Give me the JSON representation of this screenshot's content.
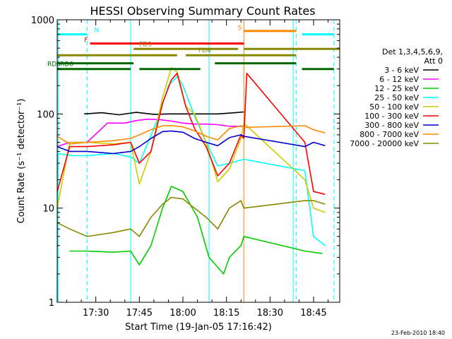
{
  "chart_data": {
    "type": "line",
    "title": "HESSI Observing Summary Count Rates",
    "xlabel": "Start Time (19-Jan-05 17:16:42)",
    "ylabel": "Count Rate (s⁻¹ detector⁻¹)",
    "ylim": [
      1,
      1000
    ],
    "yscale": "log",
    "xlim": [
      "17:16:42",
      "18:54:00"
    ],
    "y_ticks": [
      "1",
      "10",
      "100",
      "1000"
    ],
    "x_ticks": [
      "17:30",
      "17:45",
      "18:00",
      "18:15",
      "18:30",
      "18:45"
    ],
    "grid": false,
    "legend": {
      "title_lines": [
        "Det 1,3,4,5,6,9,",
        "Att 0"
      ],
      "placement": "right"
    },
    "series": [
      {
        "name": "3 - 6 keV",
        "color": "#000000",
        "points": [
          [
            "17:26",
            100
          ],
          [
            "17:32",
            103
          ],
          [
            "17:38",
            98
          ],
          [
            "17:44",
            104
          ],
          [
            "17:50",
            99
          ],
          [
            "17:55",
            100
          ],
          [
            "18:02",
            100
          ],
          [
            "18:08",
            100
          ],
          [
            "18:12",
            100
          ],
          [
            "18:18",
            103
          ],
          [
            "18:21",
            105
          ]
        ]
      },
      {
        "name": "6 - 12 keV",
        "color": "#ff00ff",
        "points": [
          [
            "17:16:42",
            45
          ],
          [
            "17:21",
            50
          ],
          [
            "17:27",
            50
          ],
          [
            "17:34",
            80
          ],
          [
            "17:40",
            80
          ],
          [
            "17:44",
            85
          ],
          [
            "17:48",
            88
          ],
          [
            "17:52",
            87
          ],
          [
            "17:56",
            84
          ],
          [
            "18:00",
            80
          ],
          [
            "18:04",
            78
          ],
          [
            "18:08",
            78
          ],
          [
            "18:12",
            77
          ],
          [
            "18:16",
            74
          ],
          [
            "18:20",
            74
          ],
          [
            "18:21",
            74
          ]
        ]
      },
      {
        "name": "12 - 25 keV",
        "color": "#00cc00",
        "points": [
          [
            "17:21",
            3.5
          ],
          [
            "17:27",
            3.5
          ],
          [
            "17:36",
            3.4
          ],
          [
            "17:42",
            3.5
          ],
          [
            "17:45",
            2.5
          ],
          [
            "17:49",
            4
          ],
          [
            "17:53",
            10
          ],
          [
            "17:56",
            17
          ],
          [
            "18:00",
            15
          ],
          [
            "18:05",
            8
          ],
          [
            "18:09",
            3
          ],
          [
            "18:14",
            2
          ],
          [
            "18:16",
            3
          ],
          [
            "18:20",
            4
          ],
          [
            "18:21",
            5
          ],
          [
            "18:42",
            3.5
          ],
          [
            "18:48",
            3.3
          ]
        ]
      },
      {
        "name": "25 - 50 keV",
        "color": "#00ffff",
        "points": [
          [
            "17:16:42",
            1
          ],
          [
            "17:17",
            38
          ],
          [
            "17:22",
            36
          ],
          [
            "17:27",
            36
          ],
          [
            "17:36",
            38
          ],
          [
            "17:42",
            35
          ],
          [
            "17:45",
            30
          ],
          [
            "17:48",
            50
          ],
          [
            "17:52",
            100
          ],
          [
            "17:55",
            200
          ],
          [
            "17:58",
            250
          ],
          [
            "18:00",
            200
          ],
          [
            "18:04",
            95
          ],
          [
            "18:08",
            50
          ],
          [
            "18:12",
            28
          ],
          [
            "18:16",
            30
          ],
          [
            "18:21",
            33
          ],
          [
            "18:42",
            25
          ],
          [
            "18:45",
            5
          ],
          [
            "18:49",
            4
          ]
        ]
      },
      {
        "name": "50 - 100 keV",
        "color": "#cccc00",
        "points": [
          [
            "17:16:42",
            10
          ],
          [
            "17:21",
            50
          ],
          [
            "17:27",
            50
          ],
          [
            "17:36",
            48
          ],
          [
            "17:42",
            50
          ],
          [
            "17:45",
            18
          ],
          [
            "17:49",
            40
          ],
          [
            "17:53",
            150
          ],
          [
            "17:56",
            310
          ],
          [
            "17:58",
            280
          ],
          [
            "18:01",
            120
          ],
          [
            "18:04",
            100
          ],
          [
            "18:08",
            50
          ],
          [
            "18:12",
            19
          ],
          [
            "18:16",
            26
          ],
          [
            "18:20",
            55
          ],
          [
            "18:21",
            80
          ],
          [
            "18:42",
            20
          ],
          [
            "18:45",
            10
          ],
          [
            "18:49",
            9
          ]
        ]
      },
      {
        "name": "100 - 300 keV",
        "color": "#ff0000",
        "points": [
          [
            "17:16:42",
            15
          ],
          [
            "17:21",
            45
          ],
          [
            "17:27",
            45
          ],
          [
            "17:36",
            47
          ],
          [
            "17:42",
            50
          ],
          [
            "17:45",
            30
          ],
          [
            "17:49",
            40
          ],
          [
            "17:53",
            130
          ],
          [
            "17:56",
            230
          ],
          [
            "17:58",
            270
          ],
          [
            "18:01",
            120
          ],
          [
            "18:04",
            70
          ],
          [
            "18:08",
            45
          ],
          [
            "18:12",
            22
          ],
          [
            "18:16",
            30
          ],
          [
            "18:20",
            60
          ],
          [
            "18:21",
            55
          ],
          [
            "18:22",
            270
          ],
          [
            "18:42",
            50
          ],
          [
            "18:45",
            15
          ],
          [
            "18:49",
            14
          ]
        ]
      },
      {
        "name": "300 - 800 keV",
        "color": "#0000cc",
        "points": [
          [
            "17:16:42",
            45
          ],
          [
            "17:21",
            40
          ],
          [
            "17:27",
            40
          ],
          [
            "17:36",
            38
          ],
          [
            "17:42",
            40
          ],
          [
            "17:45",
            45
          ],
          [
            "17:49",
            55
          ],
          [
            "17:53",
            65
          ],
          [
            "17:56",
            66
          ],
          [
            "18:00",
            64
          ],
          [
            "18:04",
            55
          ],
          [
            "18:08",
            50
          ],
          [
            "18:12",
            46
          ],
          [
            "18:16",
            56
          ],
          [
            "18:20",
            60
          ],
          [
            "18:21",
            58
          ],
          [
            "18:42",
            45
          ],
          [
            "18:45",
            50
          ],
          [
            "18:49",
            46
          ]
        ]
      },
      {
        "name": "800 - 7000 keV",
        "color": "#ff8800",
        "points": [
          [
            "17:16:42",
            58
          ],
          [
            "17:21",
            48
          ],
          [
            "17:27",
            50
          ],
          [
            "17:36",
            52
          ],
          [
            "17:42",
            55
          ],
          [
            "17:45",
            60
          ],
          [
            "17:49",
            68
          ],
          [
            "17:53",
            75
          ],
          [
            "17:56",
            75
          ],
          [
            "18:00",
            73
          ],
          [
            "18:04",
            66
          ],
          [
            "18:08",
            58
          ],
          [
            "18:12",
            53
          ],
          [
            "18:16",
            70
          ],
          [
            "18:20",
            75
          ],
          [
            "18:21",
            72
          ],
          [
            "18:42",
            75
          ],
          [
            "18:45",
            68
          ],
          [
            "18:49",
            63
          ]
        ]
      },
      {
        "name": "7000 - 20000 keV",
        "color": "#888800",
        "points": [
          [
            "17:16:42",
            7
          ],
          [
            "17:21",
            6
          ],
          [
            "17:27",
            5
          ],
          [
            "17:36",
            5.5
          ],
          [
            "17:42",
            6
          ],
          [
            "17:45",
            5
          ],
          [
            "17:49",
            8
          ],
          [
            "17:53",
            11
          ],
          [
            "17:56",
            13
          ],
          [
            "18:00",
            12.5
          ],
          [
            "18:04",
            10
          ],
          [
            "18:08",
            8
          ],
          [
            "18:12",
            6
          ],
          [
            "18:16",
            10
          ],
          [
            "18:20",
            12
          ],
          [
            "18:21",
            10
          ],
          [
            "18:42",
            12
          ],
          [
            "18:45",
            12
          ],
          [
            "18:49",
            11
          ]
        ]
      }
    ],
    "flag_bars": [
      {
        "label": "N",
        "color": "#00ffff",
        "level": 700,
        "segments": [
          [
            "17:16:42",
            "17:27"
          ],
          [
            "18:41",
            "18:52"
          ]
        ]
      },
      {
        "label": "S",
        "color": "#ff8800",
        "level": 760,
        "segments": [
          [
            "18:21",
            "18:39"
          ]
        ]
      },
      {
        "label": "F",
        "color": "#ff0000",
        "level": 560,
        "segments": [
          [
            "17:28",
            "18:21"
          ]
        ]
      },
      {
        "label": "FD3",
        "color": "#888800",
        "level": 490,
        "segments": [
          [
            "17:43",
            "18:19"
          ],
          [
            "18:21",
            "18:54"
          ]
        ]
      },
      {
        "label": "FD4",
        "color": "#888800",
        "level": 420,
        "segments": [
          [
            "17:16:42",
            "17:58"
          ],
          [
            "18:01",
            "18:39"
          ]
        ]
      },
      {
        "label": "RD0",
        "color": "#006600",
        "level": 345,
        "segments": [
          [
            "17:16:42",
            "17:43"
          ],
          [
            "18:11",
            "18:39"
          ]
        ]
      },
      {
        "label": "RD6",
        "color": "#006600",
        "level": 300,
        "segments": [
          [
            "17:16:42",
            "17:42"
          ],
          [
            "17:45",
            "18:06"
          ],
          [
            "18:41",
            "18:52"
          ]
        ]
      }
    ],
    "vertical_markers": [
      {
        "time": "17:17",
        "color": "#00ffff",
        "style": "solid"
      },
      {
        "time": "17:27",
        "color": "#00ffff",
        "style": "dashed"
      },
      {
        "time": "17:42",
        "color": "#00ffff",
        "style": "solid"
      },
      {
        "time": "18:09",
        "color": "#00ffff",
        "style": "solid"
      },
      {
        "time": "18:21",
        "color": "#ff8800",
        "style": "solid"
      },
      {
        "time": "18:38",
        "color": "#00ffff",
        "style": "solid"
      },
      {
        "time": "18:39",
        "color": "#00ffff",
        "style": "dashed"
      },
      {
        "time": "18:52",
        "color": "#00ffff",
        "style": "dashed"
      }
    ]
  },
  "footer": {
    "timestamp": "23-Feb-2010 18:40"
  }
}
